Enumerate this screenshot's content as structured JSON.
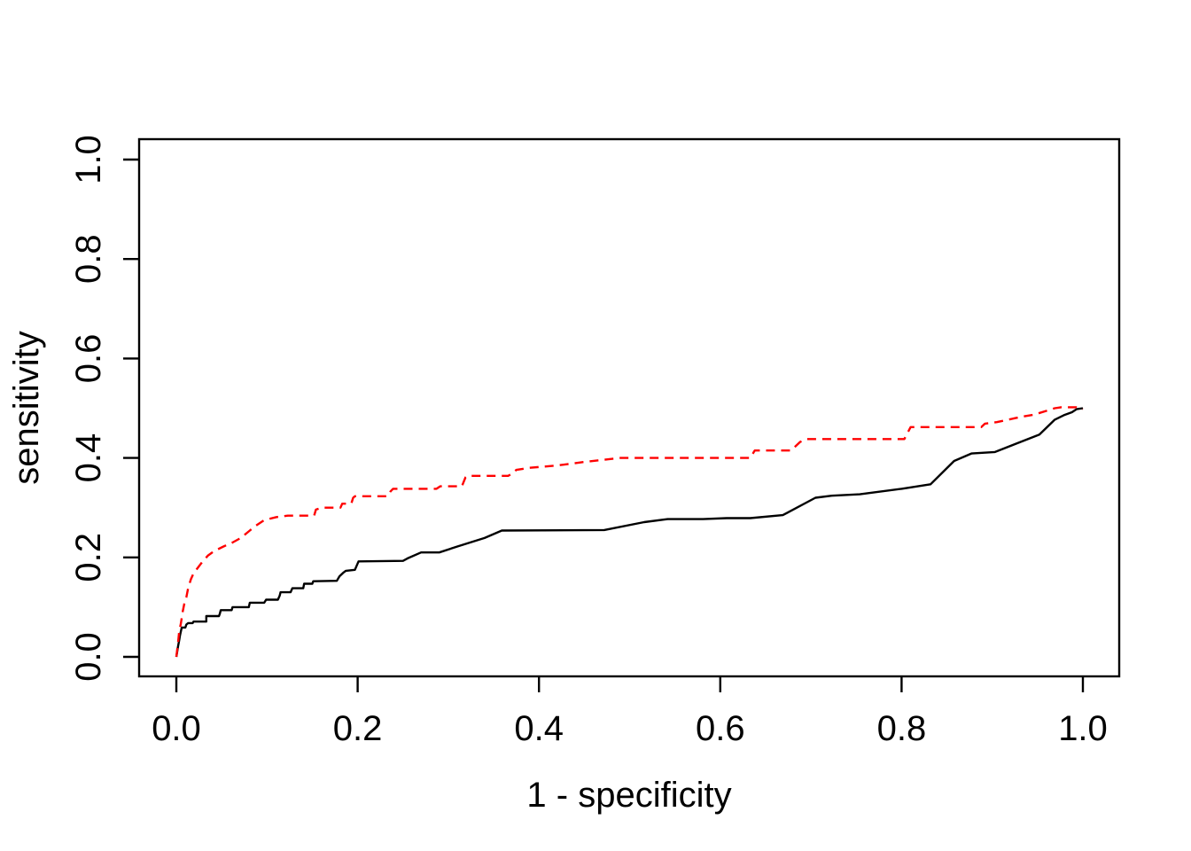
{
  "figure": {
    "background": "#ffffff",
    "plot_border_color": "#000000"
  },
  "chart_data": {
    "type": "line",
    "title": "",
    "xlabel": "1 - specificity",
    "ylabel": "sensitivity",
    "xlim": [
      0,
      1
    ],
    "ylim": [
      0,
      1
    ],
    "grid": false,
    "legend": "none",
    "x_ticks": {
      "values": [
        0.0,
        0.2,
        0.4,
        0.6,
        0.8,
        1.0
      ],
      "labels": [
        "0.0",
        "0.2",
        "0.4",
        "0.6",
        "0.8",
        "1.0"
      ]
    },
    "y_ticks": {
      "values": [
        0.0,
        0.2,
        0.4,
        0.6,
        0.8,
        1.0
      ],
      "labels": [
        "0.0",
        "0.2",
        "0.4",
        "0.6",
        "0.8",
        "1.0"
      ]
    },
    "series": [
      {
        "name": "roc-curve-solid-black",
        "style": "solid",
        "color": "#000000",
        "points": [
          [
            0.0,
            0.0
          ],
          [
            0.002,
            0.022
          ],
          [
            0.003,
            0.032
          ],
          [
            0.004,
            0.043
          ],
          [
            0.005,
            0.051
          ],
          [
            0.006,
            0.059
          ],
          [
            0.01,
            0.059
          ],
          [
            0.011,
            0.065
          ],
          [
            0.013,
            0.068
          ],
          [
            0.018,
            0.068
          ],
          [
            0.019,
            0.071
          ],
          [
            0.033,
            0.071
          ],
          [
            0.033,
            0.082
          ],
          [
            0.047,
            0.082
          ],
          [
            0.048,
            0.087
          ],
          [
            0.049,
            0.094
          ],
          [
            0.061,
            0.094
          ],
          [
            0.062,
            0.1
          ],
          [
            0.08,
            0.1
          ],
          [
            0.081,
            0.109
          ],
          [
            0.097,
            0.109
          ],
          [
            0.099,
            0.115
          ],
          [
            0.112,
            0.115
          ],
          [
            0.114,
            0.123
          ],
          [
            0.115,
            0.13
          ],
          [
            0.126,
            0.13
          ],
          [
            0.128,
            0.138
          ],
          [
            0.14,
            0.138
          ],
          [
            0.141,
            0.147
          ],
          [
            0.15,
            0.147
          ],
          [
            0.151,
            0.152
          ],
          [
            0.177,
            0.153
          ],
          [
            0.18,
            0.162
          ],
          [
            0.184,
            0.169
          ],
          [
            0.187,
            0.173
          ],
          [
            0.197,
            0.175
          ],
          [
            0.201,
            0.192
          ],
          [
            0.25,
            0.193
          ],
          [
            0.255,
            0.198
          ],
          [
            0.27,
            0.21
          ],
          [
            0.29,
            0.21
          ],
          [
            0.31,
            0.222
          ],
          [
            0.34,
            0.239
          ],
          [
            0.359,
            0.254
          ],
          [
            0.472,
            0.255
          ],
          [
            0.516,
            0.271
          ],
          [
            0.542,
            0.277
          ],
          [
            0.581,
            0.277
          ],
          [
            0.607,
            0.279
          ],
          [
            0.633,
            0.279
          ],
          [
            0.669,
            0.285
          ],
          [
            0.705,
            0.32
          ],
          [
            0.723,
            0.324
          ],
          [
            0.754,
            0.327
          ],
          [
            0.8,
            0.338
          ],
          [
            0.832,
            0.347
          ],
          [
            0.858,
            0.394
          ],
          [
            0.877,
            0.409
          ],
          [
            0.903,
            0.412
          ],
          [
            0.952,
            0.447
          ],
          [
            0.969,
            0.477
          ],
          [
            0.979,
            0.486
          ],
          [
            0.988,
            0.492
          ],
          [
            0.993,
            0.498
          ],
          [
            1.0,
            0.5
          ]
        ]
      },
      {
        "name": "roc-curve-dashed-red",
        "style": "dashed",
        "color": "#FF0000",
        "points": [
          [
            0.0,
            0.0
          ],
          [
            0.002,
            0.03
          ],
          [
            0.003,
            0.049
          ],
          [
            0.005,
            0.067
          ],
          [
            0.007,
            0.091
          ],
          [
            0.009,
            0.109
          ],
          [
            0.011,
            0.12
          ],
          [
            0.013,
            0.138
          ],
          [
            0.016,
            0.156
          ],
          [
            0.019,
            0.168
          ],
          [
            0.024,
            0.18
          ],
          [
            0.029,
            0.192
          ],
          [
            0.035,
            0.204
          ],
          [
            0.042,
            0.213
          ],
          [
            0.052,
            0.222
          ],
          [
            0.062,
            0.23
          ],
          [
            0.071,
            0.239
          ],
          [
            0.081,
            0.254
          ],
          [
            0.087,
            0.263
          ],
          [
            0.097,
            0.275
          ],
          [
            0.11,
            0.281
          ],
          [
            0.123,
            0.284
          ],
          [
            0.152,
            0.284
          ],
          [
            0.154,
            0.296
          ],
          [
            0.16,
            0.3
          ],
          [
            0.181,
            0.3
          ],
          [
            0.183,
            0.308
          ],
          [
            0.193,
            0.308
          ],
          [
            0.195,
            0.32
          ],
          [
            0.197,
            0.323
          ],
          [
            0.233,
            0.323
          ],
          [
            0.236,
            0.332
          ],
          [
            0.239,
            0.338
          ],
          [
            0.287,
            0.338
          ],
          [
            0.291,
            0.343
          ],
          [
            0.315,
            0.343
          ],
          [
            0.319,
            0.361
          ],
          [
            0.321,
            0.364
          ],
          [
            0.366,
            0.364
          ],
          [
            0.37,
            0.368
          ],
          [
            0.375,
            0.376
          ],
          [
            0.389,
            0.38
          ],
          [
            0.421,
            0.385
          ],
          [
            0.45,
            0.392
          ],
          [
            0.49,
            0.4
          ],
          [
            0.633,
            0.4
          ],
          [
            0.638,
            0.415
          ],
          [
            0.678,
            0.415
          ],
          [
            0.688,
            0.432
          ],
          [
            0.695,
            0.438
          ],
          [
            0.803,
            0.438
          ],
          [
            0.81,
            0.462
          ],
          [
            0.888,
            0.462
          ],
          [
            0.892,
            0.469
          ],
          [
            0.905,
            0.472
          ],
          [
            0.933,
            0.483
          ],
          [
            0.946,
            0.487
          ],
          [
            0.969,
            0.5
          ],
          [
            0.976,
            0.502
          ],
          [
            0.993,
            0.502
          ],
          [
            1.0,
            0.498
          ]
        ]
      }
    ]
  }
}
